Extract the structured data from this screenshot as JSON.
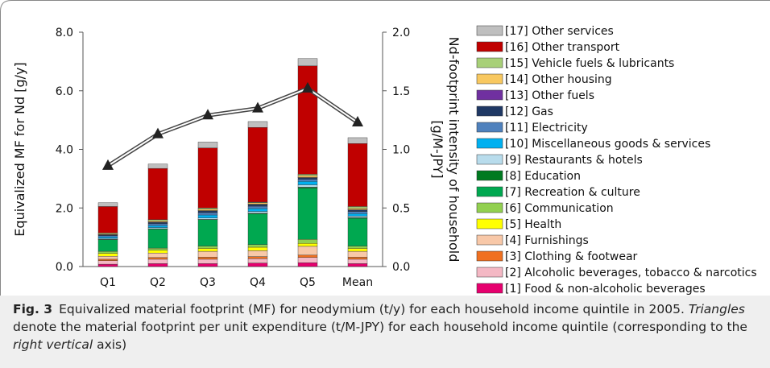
{
  "chart_data": {
    "type": "bar",
    "stacked": true,
    "y_label": "Equivalized MF for Nd [g/y]",
    "y2_label": [
      "Nd-footprint intensity of household",
      "[g/M-JPY]"
    ],
    "categories": [
      "Q1",
      "Q2",
      "Q3",
      "Q4",
      "Q5",
      "Mean"
    ],
    "ylim": [
      0,
      8
    ],
    "yticks": [
      {
        "value": 0,
        "label": "0.0"
      },
      {
        "value": 2,
        "label": "2.0"
      },
      {
        "value": 4,
        "label": "4.0"
      },
      {
        "value": 6,
        "label": "6.0"
      },
      {
        "value": 8,
        "label": "8.0"
      }
    ],
    "y2lim": [
      0,
      2
    ],
    "y2ticks": [
      {
        "value": 0,
        "label": "0.0"
      },
      {
        "value": 0.5,
        "label": "0.5"
      },
      {
        "value": 1,
        "label": "1.0"
      },
      {
        "value": 1.5,
        "label": "1.5"
      },
      {
        "value": 2,
        "label": "2.0"
      }
    ],
    "series": [
      {
        "name": "[1] Food & non-alcoholic beverages",
        "color": "#e6006e",
        "values": [
          0.08,
          0.1,
          0.1,
          0.12,
          0.13,
          0.1
        ]
      },
      {
        "name": "[2] Alcoholic beverages, tobacco & narcotics",
        "color": "#f4b8c4",
        "values": [
          0.12,
          0.15,
          0.15,
          0.15,
          0.18,
          0.15
        ]
      },
      {
        "name": "[3] Clothing & footwear",
        "color": "#f07020",
        "values": [
          0.05,
          0.06,
          0.07,
          0.07,
          0.08,
          0.07
        ]
      },
      {
        "name": "[4] Furnishings",
        "color": "#f8c8a8",
        "values": [
          0.1,
          0.15,
          0.2,
          0.2,
          0.3,
          0.2
        ]
      },
      {
        "name": "[5] Health",
        "color": "#ffff00",
        "values": [
          0.1,
          0.1,
          0.1,
          0.12,
          0.1,
          0.1
        ]
      },
      {
        "name": "[6] Communication",
        "color": "#92d050",
        "values": [
          0.07,
          0.07,
          0.08,
          0.09,
          0.14,
          0.08
        ]
      },
      {
        "name": "[7] Recreation & culture",
        "color": "#00a850",
        "values": [
          0.4,
          0.65,
          0.9,
          1.05,
          1.75,
          0.95
        ]
      },
      {
        "name": "[8] Education",
        "color": "#007a20",
        "values": [
          0.01,
          0.01,
          0.01,
          0.02,
          0.03,
          0.02
        ]
      },
      {
        "name": "[9] Restaurants & hotels",
        "color": "#b8dcec",
        "values": [
          0.03,
          0.04,
          0.05,
          0.06,
          0.08,
          0.05
        ]
      },
      {
        "name": "[10] Miscellaneous goods & services",
        "color": "#00b0f0",
        "values": [
          0.05,
          0.07,
          0.1,
          0.1,
          0.12,
          0.09
        ]
      },
      {
        "name": "[11] Electricity",
        "color": "#4f81bd",
        "values": [
          0.04,
          0.06,
          0.08,
          0.08,
          0.07,
          0.07
        ]
      },
      {
        "name": "[12] Gas",
        "color": "#1f3864",
        "values": [
          0.03,
          0.05,
          0.06,
          0.06,
          0.05,
          0.05
        ]
      },
      {
        "name": "[13] Other fuels",
        "color": "#7030a0",
        "values": [
          0.01,
          0.01,
          0.01,
          0.01,
          0.01,
          0.01
        ]
      },
      {
        "name": "[14] Other housing",
        "color": "#f8c860",
        "values": [
          0.03,
          0.04,
          0.05,
          0.05,
          0.06,
          0.05
        ]
      },
      {
        "name": "[15] Vehicle fuels & lubricants",
        "color": "#a8d078",
        "values": [
          0.03,
          0.04,
          0.04,
          0.02,
          0.05,
          0.06
        ]
      },
      {
        "name": "[16] Other transport",
        "color": "#c00000",
        "values": [
          0.9,
          1.75,
          2.05,
          2.55,
          3.7,
          2.15
        ]
      },
      {
        "name": "[17] Other services",
        "color": "#bfbfbf",
        "values": [
          0.13,
          0.15,
          0.2,
          0.2,
          0.25,
          0.2
        ]
      }
    ],
    "line_series": {
      "axis": "y2",
      "color": "#444444",
      "values": [
        0.86,
        1.13,
        1.29,
        1.35,
        1.52,
        1.23
      ]
    }
  },
  "caption": {
    "label": "Fig. 3",
    "parts": [
      {
        "text": "Equivalized material footprint (MF) for neodymium (t/y) for each household income quintile in 2005. ",
        "italic": false
      },
      {
        "text": "Triangles",
        "italic": true
      },
      {
        "text": " denote the material footprint per unit expenditure (t/M-JPY) for each household income quintile (corresponding to the ",
        "italic": false
      },
      {
        "text": "right vertical",
        "italic": true
      },
      {
        "text": " axis)",
        "italic": false
      }
    ]
  }
}
